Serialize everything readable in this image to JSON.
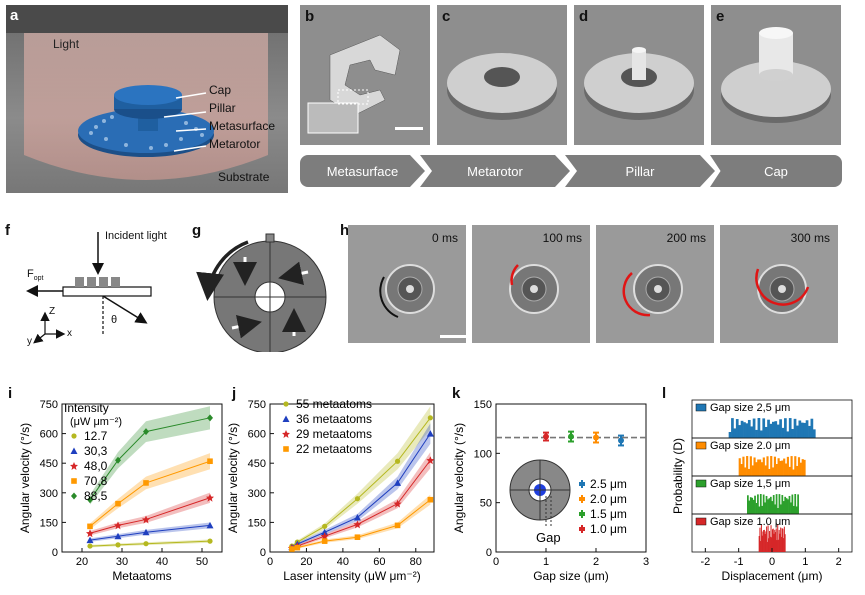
{
  "panels": {
    "a": {
      "label": "a",
      "light": "Light",
      "cap": "Cap",
      "pillar": "Pillar",
      "metasurface": "Metasurface",
      "metarotor": "Metarotor",
      "substrate": "Substrate"
    },
    "b": {
      "label": "b"
    },
    "c": {
      "label": "c"
    },
    "d": {
      "label": "d"
    },
    "e": {
      "label": "e"
    },
    "steps": [
      "Metasurface",
      "Metarotor",
      "Pillar",
      "Cap"
    ],
    "f": {
      "label": "f",
      "incident": "Incident light",
      "fopt": "F",
      "fopt_sub": "opt",
      "theta": "θ",
      "z": "Z",
      "y": "y",
      "x": "x"
    },
    "g": {
      "label": "g"
    },
    "h": {
      "label": "h",
      "times": [
        "0 ms",
        "100 ms",
        "200 ms",
        "300 ms"
      ]
    },
    "i": {
      "label": "i"
    },
    "j": {
      "label": "j"
    },
    "k": {
      "label": "k",
      "gap_label": "Gap"
    },
    "l": {
      "label": "l"
    }
  },
  "colors": {
    "gray_bg": "#8a8a8a",
    "blue": "#1f5fa0",
    "red": "#d62728",
    "orange": "#ff8c00",
    "green": "#2ca02c",
    "olive": "#b5b820",
    "lightblue": "#1f77b4"
  },
  "chart_data": [
    {
      "id": "i",
      "type": "line",
      "xlabel": "Metaatoms",
      "ylabel": "Angular velocity (°/s)",
      "xlim": [
        15,
        55
      ],
      "ylim": [
        0,
        750
      ],
      "xticks": [
        20,
        30,
        40,
        50
      ],
      "yticks": [
        0,
        150,
        300,
        450,
        600,
        750
      ],
      "legend_title": "Intensity",
      "legend_unit": "(μW μm⁻²)",
      "x": [
        22,
        29,
        36,
        52
      ],
      "series": [
        {
          "name": "12.7",
          "color": "#b5b820",
          "marker": "circle",
          "values": [
            30,
            36,
            42,
            55
          ]
        },
        {
          "name": "30,3",
          "color": "#1f3fbf",
          "marker": "triangle",
          "values": [
            60,
            80,
            100,
            135
          ]
        },
        {
          "name": "48,0",
          "color": "#d62728",
          "marker": "star",
          "values": [
            95,
            135,
            165,
            275
          ]
        },
        {
          "name": "70,8",
          "color": "#ff9900",
          "marker": "square",
          "values": [
            130,
            245,
            350,
            460
          ]
        },
        {
          "name": "88,5",
          "color": "#2a8a2a",
          "marker": "diamond",
          "values": [
            265,
            465,
            610,
            680
          ]
        }
      ]
    },
    {
      "id": "j",
      "type": "line",
      "xlabel": "Laser intensity (μW μm⁻²)",
      "ylabel": "Angular velocity (°/s)",
      "xlim": [
        0,
        90
      ],
      "ylim": [
        0,
        750
      ],
      "xticks": [
        0,
        20,
        40,
        60,
        80
      ],
      "yticks": [
        0,
        150,
        300,
        450,
        600,
        750
      ],
      "x": [
        12,
        15,
        30,
        48,
        70,
        88
      ],
      "series": [
        {
          "name": "55 metaatoms",
          "color": "#b5b820",
          "marker": "circle",
          "values": [
            30,
            50,
            130,
            270,
            460,
            680
          ]
        },
        {
          "name": "36 metaatoms",
          "color": "#1f3fbf",
          "marker": "triangle",
          "values": [
            25,
            40,
            100,
            175,
            350,
            600
          ]
        },
        {
          "name": "29 metaatoms",
          "color": "#d62728",
          "marker": "star",
          "values": [
            20,
            30,
            80,
            140,
            245,
            465
          ]
        },
        {
          "name": "22 metaatoms",
          "color": "#ff9900",
          "marker": "square",
          "values": [
            15,
            22,
            55,
            75,
            135,
            265
          ]
        }
      ]
    },
    {
      "id": "k",
      "type": "scatter",
      "xlabel": "Gap size (μm)",
      "ylabel": "Angular velocity (°/s)",
      "xlim": [
        0,
        3
      ],
      "ylim": [
        0,
        150
      ],
      "xticks": [
        0,
        1,
        2,
        3
      ],
      "yticks": [
        0,
        50,
        100,
        150
      ],
      "reference": 116,
      "series": [
        {
          "name": "2.5 μm",
          "color": "#1f77b4",
          "x": 2.5,
          "y": 113,
          "err": 5
        },
        {
          "name": "2.0 μm",
          "color": "#ff8c00",
          "x": 2.0,
          "y": 116,
          "err": 5
        },
        {
          "name": "1.5 μm",
          "color": "#2ca02c",
          "x": 1.5,
          "y": 117,
          "err": 5
        },
        {
          "name": "1.0 μm",
          "color": "#d62728",
          "x": 1.0,
          "y": 117,
          "err": 4
        }
      ]
    },
    {
      "id": "l",
      "type": "bar",
      "xlabel": "Displacement (μm)",
      "ylabel": "Probability (D)",
      "xlim": [
        -2.4,
        2.4
      ],
      "xticks": [
        -2,
        -1,
        0,
        1,
        2
      ],
      "series": [
        {
          "name": "Gap size 2,5 μm",
          "color": "#1f77b4",
          "range": [
            -1.3,
            1.3
          ]
        },
        {
          "name": "Gap size 2.0 μm",
          "color": "#ff8c00",
          "range": [
            -1.0,
            1.0
          ]
        },
        {
          "name": "Gap size 1,5 μm",
          "color": "#2ca02c",
          "range": [
            -0.75,
            0.8
          ]
        },
        {
          "name": "Gap size 1.0 μm",
          "color": "#d62728",
          "range": [
            -0.4,
            0.4
          ]
        }
      ]
    }
  ]
}
